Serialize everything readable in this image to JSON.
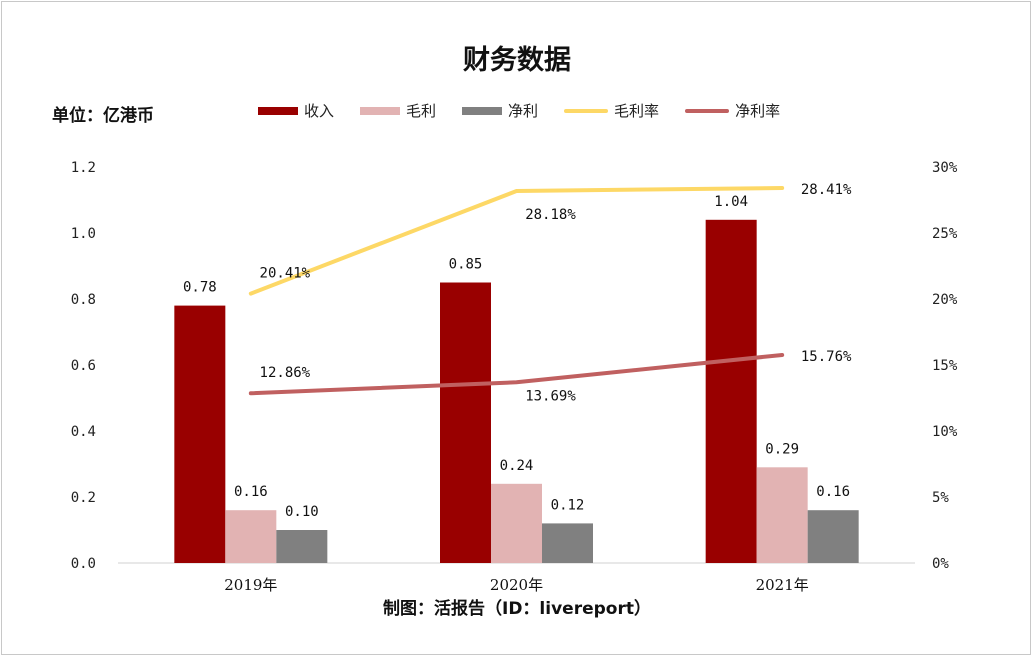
{
  "title": "财务数据",
  "unit_label": "单位：亿港币",
  "source_label": "制图：活报告（ID：livereport）",
  "legend": [
    {
      "name": "收入",
      "kind": "bar",
      "color": "#990000"
    },
    {
      "name": "毛利",
      "kind": "bar",
      "color": "#e2b3b3"
    },
    {
      "name": "净利",
      "kind": "bar",
      "color": "#808080"
    },
    {
      "name": "毛利率",
      "kind": "line",
      "color": "#fdd866"
    },
    {
      "name": "净利率",
      "kind": "line",
      "color": "#c06060"
    }
  ],
  "chart_data": {
    "type": "bar",
    "categories": [
      "2019年",
      "2020年",
      "2021年"
    ],
    "series": [
      {
        "name": "收入",
        "type": "bar",
        "axis": "left",
        "color": "#990000",
        "values": [
          0.78,
          0.85,
          1.04
        ],
        "labels": [
          "0.78",
          "0.85",
          "1.04"
        ]
      },
      {
        "name": "毛利",
        "type": "bar",
        "axis": "left",
        "color": "#e2b3b3",
        "values": [
          0.16,
          0.24,
          0.29
        ],
        "labels": [
          "0.16",
          "0.24",
          "0.29"
        ]
      },
      {
        "name": "净利",
        "type": "bar",
        "axis": "left",
        "color": "#808080",
        "values": [
          0.1,
          0.12,
          0.16
        ],
        "labels": [
          "0.10",
          "0.12",
          "0.16"
        ]
      },
      {
        "name": "毛利率",
        "type": "line",
        "axis": "right",
        "color": "#fdd866",
        "values": [
          20.41,
          28.18,
          28.41
        ],
        "labels": [
          "20.41%",
          "28.18%",
          "28.41%"
        ]
      },
      {
        "name": "净利率",
        "type": "line",
        "axis": "right",
        "color": "#c06060",
        "values": [
          12.86,
          13.69,
          15.76
        ],
        "labels": [
          "12.86%",
          "13.69%",
          "15.76%"
        ]
      }
    ],
    "ylim_left": [
      0,
      1.2
    ],
    "yticks_left": [
      "0.0",
      "0.2",
      "0.4",
      "0.6",
      "0.8",
      "1.0",
      "1.2"
    ],
    "ylim_right": [
      0,
      30
    ],
    "yticks_right": [
      "0%",
      "5%",
      "10%",
      "15%",
      "20%",
      "25%",
      "30%"
    ],
    "grid": false,
    "legend_position": "top"
  }
}
